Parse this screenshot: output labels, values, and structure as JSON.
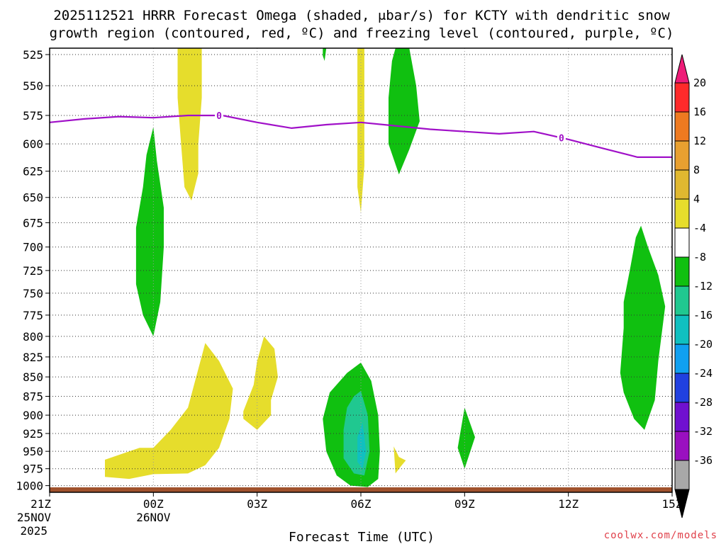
{
  "chart_data": {
    "type": "contour-timeheight",
    "title_line1": "2025112521 HRRR Forecast Omega (shaded, μbar/s) for KCTY with dendritic snow",
    "title_line2": "growth region (contoured, red, ºC) and freezing level (contoured, purple, ºC)",
    "xlabel": "Forecast Time (UTC)",
    "credit": "coolwx.com/models",
    "x_range_hours": [
      0,
      18
    ],
    "y_range_mb": [
      1010,
      520
    ],
    "y_ticks": [
      525,
      550,
      575,
      600,
      625,
      650,
      675,
      700,
      725,
      750,
      775,
      800,
      825,
      850,
      875,
      900,
      925,
      950,
      975,
      1000
    ],
    "x_ticks": [
      {
        "hour": 0,
        "label": "21Z",
        "sub1": "25NOV",
        "sub2": "2025"
      },
      {
        "hour": 3,
        "label": "00Z",
        "sub1": "26NOV",
        "sub2": ""
      },
      {
        "hour": 6,
        "label": "03Z",
        "sub1": "",
        "sub2": ""
      },
      {
        "hour": 9,
        "label": "06Z",
        "sub1": "",
        "sub2": ""
      },
      {
        "hour": 12,
        "label": "09Z",
        "sub1": "",
        "sub2": ""
      },
      {
        "hour": 15,
        "label": "12Z",
        "sub1": "",
        "sub2": ""
      },
      {
        "hour": 18,
        "label": "15Z",
        "sub1": "",
        "sub2": ""
      }
    ],
    "colorbar": {
      "labels": [
        "20",
        "16",
        "12",
        "8",
        "4",
        "-4",
        "-8",
        "-12",
        "-16",
        "-20",
        "-24",
        "-28",
        "-32",
        "-36"
      ],
      "colors": [
        "#ff2a2a",
        "#ee7a20",
        "#e8a030",
        "#e0b830",
        "#e6dd2c",
        "#ffffff",
        "#10c010",
        "#20c890",
        "#10c0c0",
        "#10a0f0",
        "#2040e0",
        "#7010d0",
        "#9a10c0",
        "#a8a8a8"
      ],
      "top_color": "#ee1c78",
      "bottom_color": "#000000"
    },
    "freezing_level": {
      "color": "#a010c8",
      "contour_label": "0",
      "points": [
        [
          0,
          581
        ],
        [
          1,
          578
        ],
        [
          2,
          576
        ],
        [
          3,
          577
        ],
        [
          4,
          575
        ],
        [
          5,
          575
        ],
        [
          6,
          581
        ],
        [
          7,
          586
        ],
        [
          8,
          583
        ],
        [
          9,
          581
        ],
        [
          10,
          584
        ],
        [
          11,
          587
        ],
        [
          12,
          589
        ],
        [
          13,
          591
        ],
        [
          14,
          589
        ],
        [
          15,
          596
        ],
        [
          16,
          604
        ],
        [
          17,
          612
        ],
        [
          18,
          612
        ]
      ],
      "label_hours": [
        4.9,
        14.8
      ]
    },
    "omega_regions": [
      {
        "value": 4,
        "color": "#e6dd2c",
        "points": [
          [
            1.6,
            962
          ],
          [
            2.6,
            945
          ],
          [
            3.0,
            945
          ],
          [
            3.5,
            920
          ],
          [
            4.0,
            890
          ],
          [
            4.3,
            840
          ],
          [
            4.5,
            808
          ],
          [
            4.9,
            830
          ],
          [
            5.3,
            865
          ],
          [
            5.2,
            905
          ],
          [
            4.9,
            945
          ],
          [
            4.5,
            970
          ],
          [
            4.0,
            982
          ],
          [
            3.0,
            983
          ],
          [
            2.3,
            990
          ],
          [
            1.6,
            987
          ]
        ]
      },
      {
        "value": 4,
        "color": "#e6dd2c",
        "points": [
          [
            5.6,
            895
          ],
          [
            5.9,
            860
          ],
          [
            6.0,
            830
          ],
          [
            6.2,
            800
          ],
          [
            6.5,
            815
          ],
          [
            6.6,
            850
          ],
          [
            6.4,
            880
          ],
          [
            6.4,
            900
          ],
          [
            6.0,
            920
          ],
          [
            5.6,
            905
          ]
        ]
      },
      {
        "value": 4,
        "color": "#e6dd2c",
        "points": [
          [
            3.7,
            520
          ],
          [
            4.4,
            520
          ],
          [
            4.4,
            560
          ],
          [
            4.3,
            600
          ],
          [
            4.3,
            627
          ],
          [
            4.1,
            653
          ],
          [
            3.9,
            640
          ],
          [
            3.8,
            600
          ],
          [
            3.7,
            560
          ]
        ]
      },
      {
        "value": 4,
        "color": "#e6dd2c",
        "points": [
          [
            8.9,
            520
          ],
          [
            9.1,
            520
          ],
          [
            9.1,
            560
          ],
          [
            9.1,
            620
          ],
          [
            9.0,
            665
          ],
          [
            8.9,
            640
          ],
          [
            8.9,
            590
          ],
          [
            8.9,
            550
          ]
        ]
      },
      {
        "value": 4,
        "color": "#e6dd2c",
        "points": [
          [
            9.95,
            943
          ],
          [
            10.1,
            958
          ],
          [
            10.3,
            963
          ],
          [
            10.15,
            972
          ],
          [
            10.0,
            982
          ]
        ]
      },
      {
        "value": -4,
        "color": "#10c010",
        "points": [
          [
            3.0,
            585
          ],
          [
            3.1,
            615
          ],
          [
            3.3,
            660
          ],
          [
            3.3,
            700
          ],
          [
            3.2,
            760
          ],
          [
            3.0,
            800
          ],
          [
            2.7,
            775
          ],
          [
            2.5,
            740
          ],
          [
            2.5,
            680
          ],
          [
            2.7,
            640
          ],
          [
            2.8,
            610
          ]
        ]
      },
      {
        "value": -4,
        "color": "#10c010",
        "points": [
          [
            10.0,
            520
          ],
          [
            10.4,
            520
          ],
          [
            10.6,
            550
          ],
          [
            10.7,
            580
          ],
          [
            10.4,
            605
          ],
          [
            10.1,
            628
          ],
          [
            9.8,
            600
          ],
          [
            9.8,
            560
          ],
          [
            9.9,
            530
          ]
        ]
      },
      {
        "value": -4,
        "color": "#10c010",
        "points": [
          [
            7.9,
            520
          ],
          [
            8.0,
            520
          ],
          [
            7.95,
            530
          ],
          [
            7.9,
            526
          ]
        ]
      },
      {
        "value": -4,
        "color": "#10c010",
        "points": [
          [
            9.0,
            832
          ],
          [
            9.3,
            855
          ],
          [
            9.5,
            900
          ],
          [
            9.55,
            950
          ],
          [
            9.5,
            990
          ],
          [
            9.2,
            1002
          ],
          [
            8.7,
            1000
          ],
          [
            8.3,
            985
          ],
          [
            8.0,
            950
          ],
          [
            7.9,
            905
          ],
          [
            8.1,
            870
          ],
          [
            8.6,
            845
          ]
        ]
      },
      {
        "value": -4,
        "color": "#10c010",
        "points": [
          [
            12.0,
            890
          ],
          [
            12.3,
            930
          ],
          [
            12.0,
            975
          ],
          [
            11.8,
            945
          ]
        ]
      },
      {
        "value": -4,
        "color": "#10c010",
        "points": [
          [
            17.1,
            678
          ],
          [
            17.3,
            700
          ],
          [
            17.6,
            730
          ],
          [
            17.8,
            765
          ],
          [
            17.6,
            830
          ],
          [
            17.5,
            880
          ],
          [
            17.2,
            920
          ],
          [
            16.9,
            905
          ],
          [
            16.6,
            870
          ],
          [
            16.5,
            845
          ],
          [
            16.6,
            790
          ],
          [
            16.6,
            760
          ],
          [
            16.8,
            720
          ],
          [
            16.95,
            690
          ]
        ]
      },
      {
        "value": -8,
        "color": "#20c890",
        "points": [
          [
            9.0,
            868
          ],
          [
            9.2,
            900
          ],
          [
            9.25,
            950
          ],
          [
            9.1,
            985
          ],
          [
            8.8,
            982
          ],
          [
            8.5,
            960
          ],
          [
            8.5,
            920
          ],
          [
            8.6,
            890
          ],
          [
            8.8,
            875
          ]
        ]
      },
      {
        "value": -12,
        "color": "#10c0c0",
        "points": [
          [
            9.05,
            910
          ],
          [
            9.15,
            950
          ],
          [
            9.05,
            975
          ],
          [
            8.9,
            965
          ],
          [
            8.9,
            930
          ]
        ]
      }
    ]
  }
}
